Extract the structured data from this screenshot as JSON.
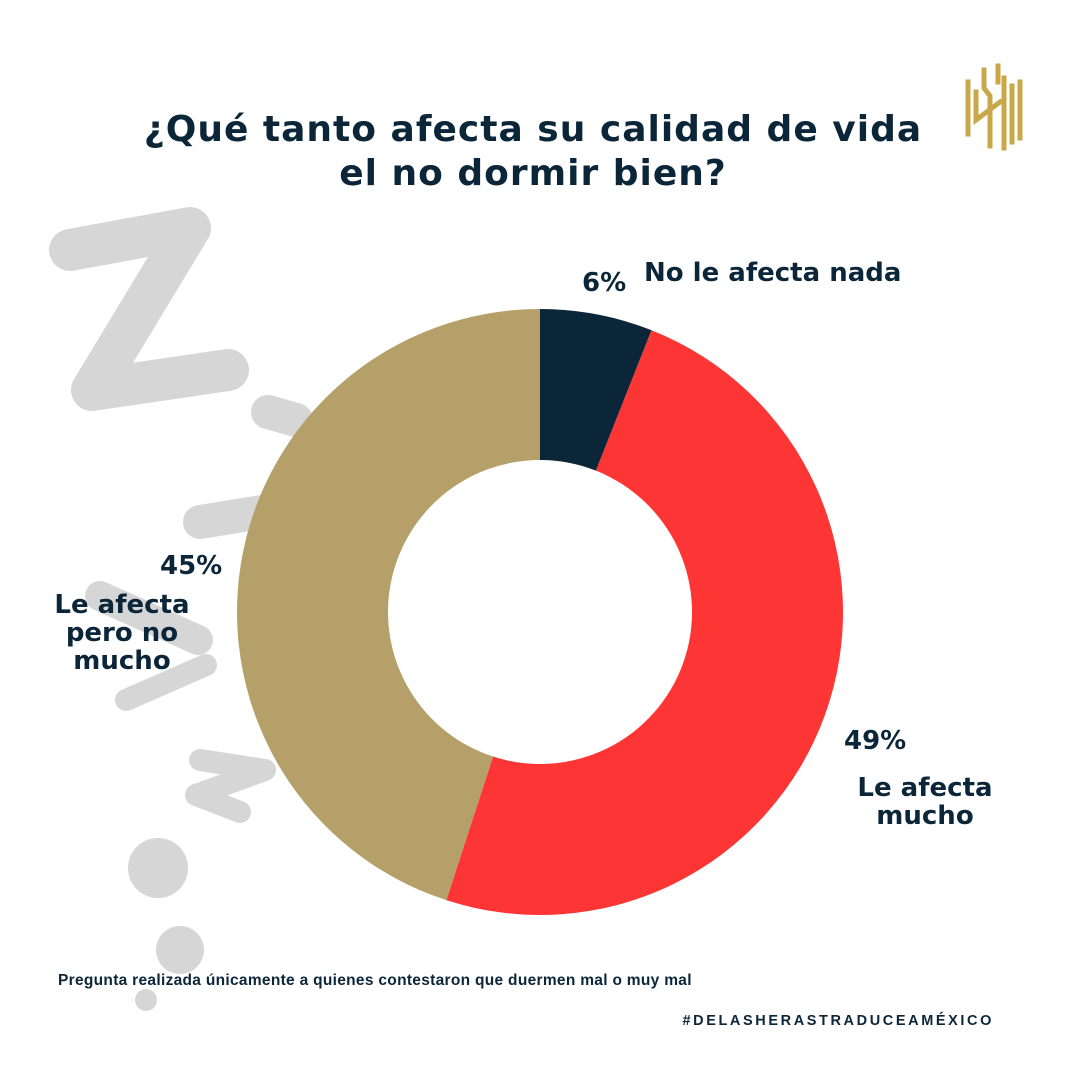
{
  "title": {
    "line1": "¿Qué tanto afecta su calidad de vida",
    "line2": "el no dormir bien?"
  },
  "logo": {
    "icon": "gold-stripes-logo-icon",
    "color": "#c9a84a"
  },
  "decoration": {
    "icon": "zzz-sleep-icon",
    "color": "#d6d6d6"
  },
  "chart_data": {
    "type": "pie",
    "style": "donut",
    "title": "¿Qué tanto afecta su calidad de vida el no dormir bien?",
    "categories": [
      "No le afecta nada",
      "Le afecta mucho",
      "Le afecta pero no mucho"
    ],
    "values": [
      6,
      49,
      45
    ],
    "value_labels": [
      "6%",
      "49%",
      "45%"
    ],
    "label_lines": [
      [
        "No le afecta nada"
      ],
      [
        "Le afecta",
        "mucho"
      ],
      [
        "Le afecta",
        "pero no",
        "mucho"
      ]
    ],
    "colors": [
      "#0b2639",
      "#fd3535",
      "#b6a06a"
    ],
    "start": "12 o'clock, clockwise",
    "legend": "none"
  },
  "footnote": "Pregunta realizada únicamente a quienes contestaron que duermen mal o muy mal",
  "hashtag": "#DELASHERASTRADUCEAMÉXICO"
}
